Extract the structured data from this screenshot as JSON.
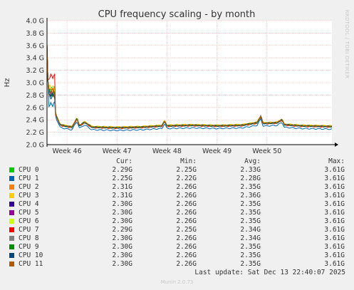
{
  "chart_data": {
    "type": "line",
    "title": "CPU frequency scaling - by month",
    "ylabel": "Hz",
    "side_label": "RRDTOOL / TOBI OETIKER",
    "ylim": [
      2.0,
      4.0
    ],
    "yticks": [
      "2.0 G",
      "2.2 G",
      "2.4 G",
      "2.6 G",
      "2.8 G",
      "3.0 G",
      "3.2 G",
      "3.4 G",
      "3.6 G",
      "3.8 G",
      "4.0 G"
    ],
    "x_range": [
      45.6,
      51.3
    ],
    "xticks": [
      {
        "label": "Week 46",
        "pos": 46
      },
      {
        "label": "Week 47",
        "pos": 47
      },
      {
        "label": "Week 48",
        "pos": 48
      },
      {
        "label": "Week 49",
        "pos": 49
      },
      {
        "label": "Week 50",
        "pos": 50
      }
    ],
    "grid": true,
    "base_profile": [
      [
        45.6,
        3.0
      ],
      [
        45.68,
        2.75
      ],
      [
        45.74,
        2.85
      ],
      [
        45.76,
        2.55
      ],
      [
        45.79,
        2.45
      ],
      [
        45.82,
        2.4
      ],
      [
        45.86,
        2.32
      ],
      [
        45.95,
        2.3
      ],
      [
        46.1,
        2.28
      ],
      [
        46.15,
        2.35
      ],
      [
        46.2,
        2.42
      ],
      [
        46.25,
        2.3
      ],
      [
        46.35,
        2.36
      ],
      [
        46.5,
        2.28
      ],
      [
        47.0,
        2.27
      ],
      [
        47.5,
        2.28
      ],
      [
        47.9,
        2.3
      ],
      [
        47.95,
        2.38
      ],
      [
        48.0,
        2.3
      ],
      [
        48.5,
        2.31
      ],
      [
        49.0,
        2.3
      ],
      [
        49.5,
        2.31
      ],
      [
        49.8,
        2.35
      ],
      [
        49.88,
        2.46
      ],
      [
        49.92,
        2.34
      ],
      [
        50.2,
        2.35
      ],
      [
        50.3,
        2.4
      ],
      [
        50.35,
        2.32
      ],
      [
        50.7,
        2.3
      ],
      [
        51.3,
        2.29
      ]
    ],
    "series": [
      {
        "name": "CPU 0",
        "color": "#00cc00",
        "offset": 0.0,
        "early": 2.9,
        "spike": 3.61
      },
      {
        "name": "CPU 1",
        "color": "#0066b3",
        "offset": -0.04,
        "early": 2.65,
        "spike": 3.61
      },
      {
        "name": "CPU 2",
        "color": "#ff8000",
        "offset": 0.01,
        "early": 2.88,
        "spike": 3.61
      },
      {
        "name": "CPU 3",
        "color": "#ffcc00",
        "offset": 0.015,
        "early": 2.92,
        "spike": 3.61
      },
      {
        "name": "CPU 4",
        "color": "#330099",
        "offset": 0.005,
        "early": 2.82,
        "spike": 3.61
      },
      {
        "name": "CPU 5",
        "color": "#990099",
        "offset": 0.005,
        "early": 2.84,
        "spike": 3.61
      },
      {
        "name": "CPU 6",
        "color": "#ccff00",
        "offset": 0.008,
        "early": 2.86,
        "spike": 3.61
      },
      {
        "name": "CPU 7",
        "color": "#ff0000",
        "offset": -0.005,
        "early": 3.1,
        "spike": 3.61
      },
      {
        "name": "CPU 8",
        "color": "#808080",
        "offset": 0.002,
        "early": 2.8,
        "spike": 3.61
      },
      {
        "name": "CPU 9",
        "color": "#008f00",
        "offset": 0.003,
        "early": 2.83,
        "spike": 3.61
      },
      {
        "name": "CPU 10",
        "color": "#00487d",
        "offset": 0.0,
        "early": 2.78,
        "spike": 3.61
      },
      {
        "name": "CPU 11",
        "color": "#b35a00",
        "offset": 0.004,
        "early": 2.87,
        "spike": 3.61
      }
    ]
  },
  "legend": {
    "headers": {
      "cur": "Cur:",
      "min": "Min:",
      "avg": "Avg:",
      "max": "Max:"
    },
    "rows": [
      {
        "name": "CPU 0",
        "color": "#00cc00",
        "cur": "2.29G",
        "min": "2.25G",
        "avg": "2.33G",
        "max": "3.61G"
      },
      {
        "name": "CPU 1",
        "color": "#0066b3",
        "cur": "2.25G",
        "min": "2.22G",
        "avg": "2.28G",
        "max": "3.61G"
      },
      {
        "name": "CPU 2",
        "color": "#ff8000",
        "cur": "2.31G",
        "min": "2.26G",
        "avg": "2.35G",
        "max": "3.61G"
      },
      {
        "name": "CPU 3",
        "color": "#ffcc00",
        "cur": "2.31G",
        "min": "2.26G",
        "avg": "2.36G",
        "max": "3.61G"
      },
      {
        "name": "CPU 4",
        "color": "#330099",
        "cur": "2.30G",
        "min": "2.26G",
        "avg": "2.35G",
        "max": "3.61G"
      },
      {
        "name": "CPU 5",
        "color": "#990099",
        "cur": "2.30G",
        "min": "2.26G",
        "avg": "2.35G",
        "max": "3.61G"
      },
      {
        "name": "CPU 6",
        "color": "#ccff00",
        "cur": "2.30G",
        "min": "2.26G",
        "avg": "2.35G",
        "max": "3.61G"
      },
      {
        "name": "CPU 7",
        "color": "#ff0000",
        "cur": "2.29G",
        "min": "2.25G",
        "avg": "2.34G",
        "max": "3.61G"
      },
      {
        "name": "CPU 8",
        "color": "#808080",
        "cur": "2.30G",
        "min": "2.26G",
        "avg": "2.34G",
        "max": "3.61G"
      },
      {
        "name": "CPU 9",
        "color": "#008f00",
        "cur": "2.30G",
        "min": "2.26G",
        "avg": "2.35G",
        "max": "3.61G"
      },
      {
        "name": "CPU 10",
        "color": "#00487d",
        "cur": "2.30G",
        "min": "2.26G",
        "avg": "2.35G",
        "max": "3.61G"
      },
      {
        "name": "CPU 11",
        "color": "#b35a00",
        "cur": "2.30G",
        "min": "2.26G",
        "avg": "2.35G",
        "max": "3.61G"
      }
    ]
  },
  "last_update": "Last update: Sat Dec 13 22:40:07 2025",
  "footer": "Munin 2.0.73",
  "colors": {
    "background": "#f0f0f0",
    "plot_bg": "#ffffff",
    "grid": "#e8b8b8",
    "axis": "#000000"
  }
}
